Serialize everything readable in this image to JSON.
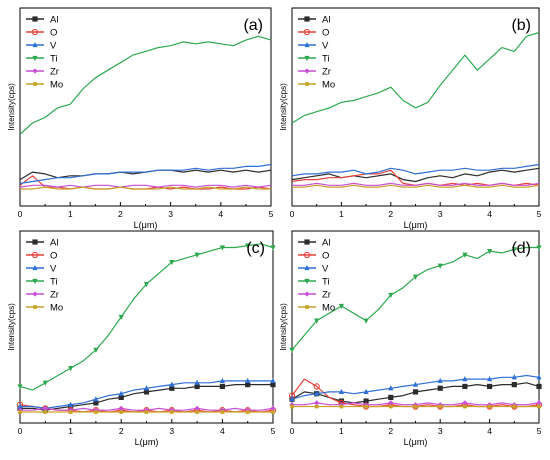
{
  "chart_data": [
    {
      "panel_label": "(a)",
      "type": "line",
      "xlabel": "L(μm)",
      "ylabel": "Intensity(cps)",
      "xlim": [
        0,
        5
      ],
      "x_ticks": [
        "0",
        "1",
        "2",
        "3",
        "4",
        "5"
      ],
      "y_ticks": "none",
      "markers": false,
      "legend_position": "top-left",
      "x": [
        0,
        0.25,
        0.5,
        0.75,
        1,
        1.25,
        1.5,
        1.75,
        2,
        2.25,
        2.5,
        2.75,
        3,
        3.25,
        3.5,
        3.75,
        4,
        4.25,
        4.5,
        4.75,
        5
      ],
      "series": [
        {
          "name": "Al",
          "color": "#2b2b2b",
          "marker": "square",
          "values": [
            14,
            18,
            17,
            15,
            16,
            16,
            17,
            17,
            18,
            17,
            18,
            19,
            19,
            18,
            19,
            18,
            19,
            18,
            19,
            18,
            19
          ]
        },
        {
          "name": "O",
          "color": "#e8403a",
          "marker": "circle",
          "values": [
            11,
            16,
            10,
            10,
            9,
            10,
            9,
            9,
            10,
            9,
            9,
            10,
            9,
            10,
            9,
            9,
            10,
            9,
            9,
            10,
            9
          ]
        },
        {
          "name": "V",
          "color": "#2f6fd6",
          "marker": "triangle-up",
          "values": [
            12,
            13,
            14,
            15,
            15,
            16,
            17,
            17,
            18,
            18,
            18,
            19,
            19,
            19,
            20,
            19,
            20,
            20,
            21,
            21,
            22
          ]
        },
        {
          "name": "Ti",
          "color": "#2ea84f",
          "marker": "triangle-down",
          "values": [
            38,
            44,
            47,
            52,
            54,
            62,
            68,
            72,
            76,
            80,
            82,
            84,
            85,
            87,
            86,
            87,
            86,
            85,
            88,
            90,
            88
          ]
        },
        {
          "name": "Zr",
          "color": "#c94fd6",
          "marker": "diamond",
          "values": [
            10,
            11,
            11,
            10,
            11,
            10,
            11,
            11,
            10,
            11,
            11,
            10,
            11,
            11,
            10,
            11,
            11,
            10,
            11,
            10,
            11
          ]
        },
        {
          "name": "Mo",
          "color": "#c9a227",
          "marker": "star",
          "values": [
            9,
            9,
            10,
            9,
            9,
            10,
            9,
            9,
            10,
            9,
            9,
            9,
            10,
            9,
            9,
            10,
            9,
            9,
            10,
            9,
            9
          ]
        }
      ]
    },
    {
      "panel_label": "(b)",
      "type": "line",
      "xlabel": "L(μm)",
      "ylabel": "Intensity(cps)",
      "xlim": [
        0,
        5
      ],
      "x_ticks": [
        "0",
        "1",
        "2",
        "3",
        "4",
        "5"
      ],
      "y_ticks": "none",
      "markers": false,
      "legend_position": "top-left",
      "x": [
        0,
        0.25,
        0.5,
        0.75,
        1,
        1.25,
        1.5,
        1.75,
        2,
        2.25,
        2.5,
        2.75,
        3,
        3.25,
        3.5,
        3.75,
        4,
        4.25,
        4.5,
        4.75,
        5
      ],
      "series": [
        {
          "name": "Al",
          "color": "#2b2b2b",
          "marker": "square",
          "values": [
            14,
            15,
            16,
            17,
            15,
            16,
            15,
            16,
            17,
            14,
            13,
            15,
            16,
            15,
            17,
            16,
            18,
            19,
            18,
            19,
            20
          ]
        },
        {
          "name": "O",
          "color": "#e8403a",
          "marker": "circle",
          "values": [
            13,
            14,
            14,
            15,
            15,
            16,
            17,
            17,
            19,
            12,
            11,
            12,
            11,
            12,
            11,
            12,
            11,
            12,
            11,
            12,
            11
          ]
        },
        {
          "name": "V",
          "color": "#2f6fd6",
          "marker": "triangle-up",
          "values": [
            16,
            17,
            17,
            18,
            18,
            19,
            17,
            18,
            20,
            19,
            17,
            18,
            19,
            19,
            20,
            19,
            19,
            20,
            20,
            21,
            22
          ]
        },
        {
          "name": "Ti",
          "color": "#2ea84f",
          "marker": "triangle-down",
          "values": [
            44,
            48,
            50,
            52,
            55,
            56,
            58,
            60,
            63,
            56,
            52,
            55,
            64,
            72,
            80,
            72,
            78,
            84,
            82,
            90,
            92
          ]
        },
        {
          "name": "Zr",
          "color": "#c94fd6",
          "marker": "diamond",
          "values": [
            11,
            11,
            12,
            11,
            11,
            12,
            11,
            11,
            12,
            11,
            11,
            12,
            11,
            11,
            12,
            11,
            11,
            12,
            11,
            11,
            12
          ]
        },
        {
          "name": "Mo",
          "color": "#c9a227",
          "marker": "star",
          "values": [
            10,
            10,
            11,
            10,
            10,
            11,
            10,
            10,
            11,
            10,
            10,
            11,
            10,
            10,
            11,
            10,
            10,
            11,
            10,
            10,
            11
          ]
        }
      ]
    },
    {
      "panel_label": "(c)",
      "type": "line",
      "xlabel": "L(μm)",
      "ylabel": "Intensity(cps)",
      "xlim": [
        0,
        5
      ],
      "x_ticks": [
        "0",
        "1",
        "2",
        "3",
        "4",
        "5"
      ],
      "y_ticks": "none",
      "markers": true,
      "legend_position": "top-left",
      "x": [
        0,
        0.25,
        0.5,
        0.75,
        1,
        1.25,
        1.5,
        1.75,
        2,
        2.25,
        2.5,
        2.75,
        3,
        3.25,
        3.5,
        3.75,
        4,
        4.25,
        4.5,
        4.75,
        5
      ],
      "series": [
        {
          "name": "Al",
          "color": "#2b2b2b",
          "marker": "square",
          "values": [
            8,
            8,
            7,
            8,
            9,
            10,
            11,
            13,
            14,
            16,
            17,
            18,
            19,
            19,
            20,
            20,
            20,
            21,
            21,
            21,
            21
          ]
        },
        {
          "name": "O",
          "color": "#e8403a",
          "marker": "circle",
          "values": [
            10,
            9,
            8,
            7,
            7,
            6,
            7,
            6,
            7,
            6,
            7,
            6,
            7,
            6,
            7,
            6,
            7,
            6,
            7,
            6,
            7
          ]
        },
        {
          "name": "V",
          "color": "#2f6fd6",
          "marker": "triangle-up",
          "values": [
            9,
            9,
            8,
            9,
            10,
            11,
            13,
            15,
            16,
            18,
            19,
            20,
            21,
            22,
            22,
            22,
            23,
            23,
            23,
            23,
            23
          ]
        },
        {
          "name": "Ti",
          "color": "#2ea84f",
          "marker": "triangle-down",
          "values": [
            20,
            18,
            22,
            26,
            30,
            34,
            40,
            48,
            58,
            68,
            76,
            82,
            88,
            90,
            92,
            94,
            96,
            96,
            97,
            98,
            96
          ]
        },
        {
          "name": "Zr",
          "color": "#c94fd6",
          "marker": "diamond",
          "values": [
            7,
            7,
            8,
            7,
            7,
            8,
            7,
            7,
            8,
            7,
            7,
            8,
            7,
            7,
            8,
            7,
            7,
            8,
            7,
            7,
            8
          ]
        },
        {
          "name": "Mo",
          "color": "#c9a227",
          "marker": "star",
          "values": [
            6,
            6,
            6,
            6,
            6,
            6,
            6,
            6,
            6,
            6,
            6,
            6,
            6,
            6,
            6,
            6,
            6,
            6,
            6,
            6,
            6
          ]
        }
      ]
    },
    {
      "panel_label": "(d)",
      "type": "line",
      "xlabel": "L(μm)",
      "ylabel": "Intensity(cps)",
      "xlim": [
        0,
        5
      ],
      "x_ticks": [
        "0",
        "1",
        "2",
        "3",
        "4",
        "5"
      ],
      "y_ticks": "none",
      "markers": true,
      "legend_position": "top-left",
      "x": [
        0,
        0.25,
        0.5,
        0.75,
        1,
        1.25,
        1.5,
        1.75,
        2,
        2.25,
        2.5,
        2.75,
        3,
        3.25,
        3.5,
        3.75,
        4,
        4.25,
        4.5,
        4.75,
        5
      ],
      "series": [
        {
          "name": "Al",
          "color": "#2b2b2b",
          "marker": "square",
          "values": [
            13,
            17,
            16,
            14,
            12,
            11,
            12,
            13,
            14,
            15,
            17,
            18,
            19,
            20,
            20,
            21,
            20,
            21,
            21,
            22,
            20
          ]
        },
        {
          "name": "O",
          "color": "#e8403a",
          "marker": "circle",
          "values": [
            15,
            24,
            20,
            14,
            11,
            10,
            9,
            9,
            10,
            9,
            9,
            10,
            9,
            9,
            10,
            9,
            9,
            10,
            9,
            9,
            10
          ]
        },
        {
          "name": "V",
          "color": "#2f6fd6",
          "marker": "triangle-up",
          "values": [
            13,
            15,
            16,
            17,
            17,
            16,
            17,
            18,
            19,
            20,
            21,
            22,
            23,
            23,
            24,
            24,
            24,
            25,
            25,
            26,
            25
          ]
        },
        {
          "name": "Ti",
          "color": "#2ea84f",
          "marker": "triangle-down",
          "values": [
            40,
            48,
            56,
            60,
            64,
            60,
            56,
            62,
            70,
            74,
            80,
            84,
            86,
            88,
            92,
            90,
            94,
            93,
            95,
            96,
            96
          ]
        },
        {
          "name": "Zr",
          "color": "#c94fd6",
          "marker": "diamond",
          "values": [
            10,
            10,
            11,
            10,
            10,
            11,
            10,
            10,
            11,
            10,
            10,
            11,
            10,
            10,
            11,
            10,
            10,
            11,
            10,
            10,
            11
          ]
        },
        {
          "name": "Mo",
          "color": "#c9a227",
          "marker": "star",
          "values": [
            9,
            9,
            9,
            9,
            9,
            9,
            9,
            9,
            9,
            9,
            9,
            9,
            9,
            9,
            9,
            9,
            9,
            9,
            9,
            9,
            9
          ]
        }
      ]
    }
  ]
}
